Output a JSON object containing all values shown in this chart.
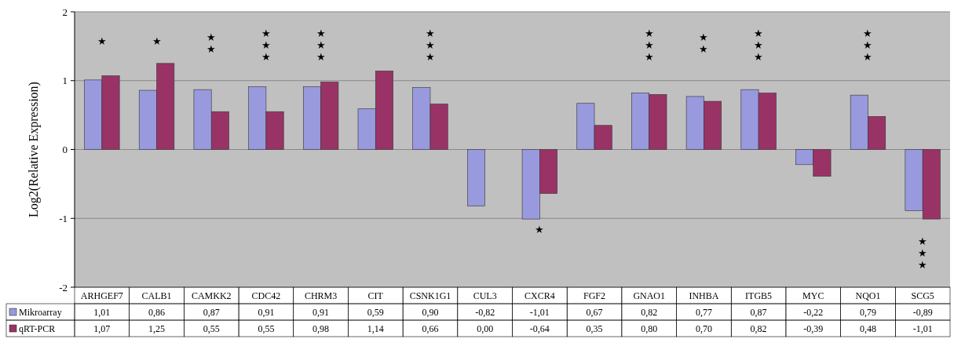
{
  "chart_data": {
    "type": "bar",
    "ylabel": "Log2(Relative Expression)",
    "categories": [
      "ARHGEF7",
      "CALB1",
      "CAMKK2",
      "CDC42",
      "CHRM3",
      "CIT",
      "CSNK1G1",
      "CUL3",
      "CXCR4",
      "FGF2",
      "GNAO1",
      "INHBA",
      "ITGB5",
      "MYC",
      "NQO1",
      "SCG5"
    ],
    "series": [
      {
        "name": "Mikroarray",
        "color": "#9999dd",
        "values": [
          1.01,
          0.86,
          0.87,
          0.91,
          0.91,
          0.59,
          0.9,
          -0.82,
          -1.01,
          0.67,
          0.82,
          0.77,
          0.87,
          -0.22,
          0.79,
          -0.89
        ],
        "value_labels": [
          "1,01",
          "0,86",
          "0,87",
          "0,91",
          "0,91",
          "0,59",
          "0,90",
          "-0,82",
          "-1,01",
          "0,67",
          "0,82",
          "0,77",
          "0,87",
          "-0,22",
          "0,79",
          "-0,89"
        ]
      },
      {
        "name": "qRT-PCR",
        "color": "#993366",
        "values": [
          1.07,
          1.25,
          0.55,
          0.55,
          0.98,
          1.14,
          0.66,
          0.0,
          -0.64,
          0.35,
          0.8,
          0.7,
          0.82,
          -0.39,
          0.48,
          -1.01
        ],
        "value_labels": [
          "1,07",
          "1,25",
          "0,55",
          "0,55",
          "0,98",
          "1,14",
          "0,66",
          "0,00",
          "-0,64",
          "0,35",
          "0,80",
          "0,70",
          "0,82",
          "-0,39",
          "0,48",
          "-1,01"
        ]
      }
    ],
    "ylim": [
      -2,
      2
    ],
    "yticks": [
      -2,
      -1,
      0,
      1,
      2
    ],
    "grid": "y",
    "legend": "bottom",
    "annotations": [
      "★",
      "★",
      "★★",
      "★★★",
      "★★★",
      "★★★",
      "★",
      "★★★",
      "★★",
      "★★★",
      "★★★",
      "★★★"
    ]
  }
}
